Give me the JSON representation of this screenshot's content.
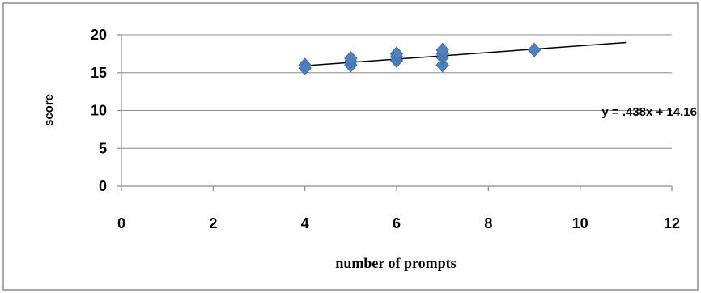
{
  "chart_data": {
    "type": "scatter",
    "title": "",
    "xlabel": "number of prompts",
    "ylabel": "score",
    "xlim": [
      0,
      12
    ],
    "ylim": [
      0,
      20
    ],
    "xticks": [
      0,
      2,
      4,
      6,
      8,
      10,
      12
    ],
    "yticks": [
      0,
      5,
      10,
      15,
      20
    ],
    "grid": "horizontal",
    "marker_color": "#4F81BD",
    "series": [
      {
        "points": [
          {
            "x": 4,
            "y": 16
          },
          {
            "x": 4,
            "y": 15.6
          },
          {
            "x": 5,
            "y": 16
          },
          {
            "x": 5,
            "y": 16.5
          },
          {
            "x": 5,
            "y": 16.9
          },
          {
            "x": 6,
            "y": 16.6
          },
          {
            "x": 6,
            "y": 17.1
          },
          {
            "x": 6,
            "y": 17.5
          },
          {
            "x": 7,
            "y": 16
          },
          {
            "x": 7,
            "y": 17
          },
          {
            "x": 7,
            "y": 17.5
          },
          {
            "x": 7,
            "y": 18
          },
          {
            "x": 9,
            "y": 18
          }
        ]
      }
    ],
    "trendline": {
      "slope": 0.438,
      "intercept": 14.16,
      "x_range": [
        4,
        11
      ],
      "label": "y = .438x + 14.16"
    }
  }
}
